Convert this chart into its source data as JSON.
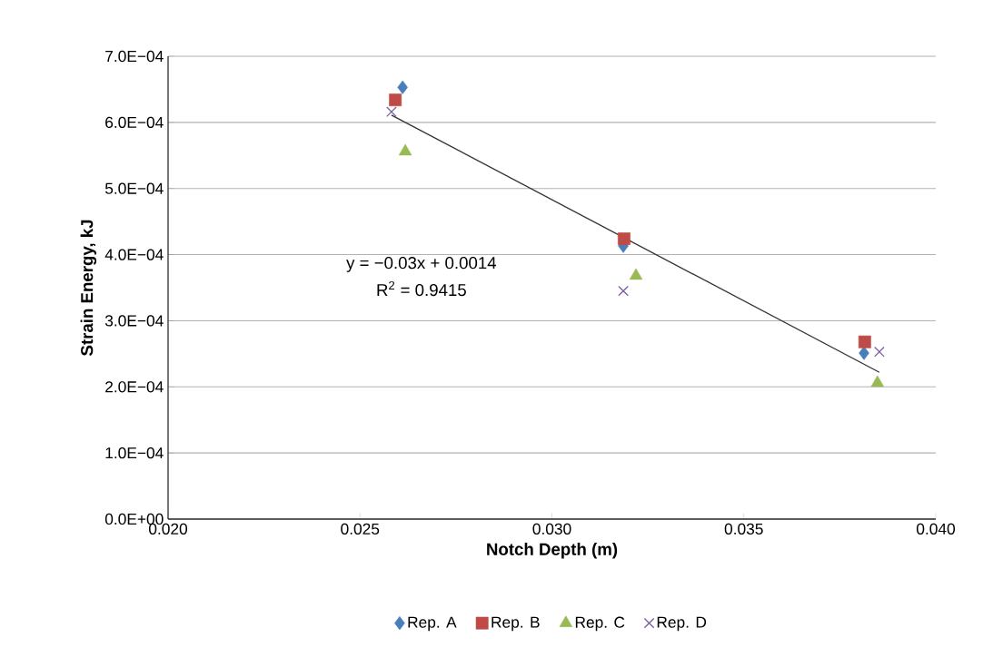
{
  "chart_data": {
    "type": "scatter",
    "xlabel": "Notch Depth (m)",
    "ylabel": "Strain Energy, kJ",
    "xlim": [
      0.02,
      0.04
    ],
    "ylim": [
      0,
      0.0007
    ],
    "xticks": [
      {
        "value": 0.02,
        "label": "0.020"
      },
      {
        "value": 0.025,
        "label": "0.025"
      },
      {
        "value": 0.03,
        "label": "0.030"
      },
      {
        "value": 0.035,
        "label": "0.035"
      },
      {
        "value": 0.04,
        "label": "0.040"
      }
    ],
    "yticks": [
      {
        "value": 0,
        "label": "0.0E+00"
      },
      {
        "value": 0.0001,
        "label": "1.0E−04"
      },
      {
        "value": 0.0002,
        "label": "2.0E−04"
      },
      {
        "value": 0.0003,
        "label": "3.0E−04"
      },
      {
        "value": 0.0004,
        "label": "4.0E−04"
      },
      {
        "value": 0.0005,
        "label": "5.0E−04"
      },
      {
        "value": 0.0006,
        "label": "6.0E−04"
      },
      {
        "value": 0.0007,
        "label": "7.0E−04"
      }
    ],
    "grid": "y",
    "legend": "bottom",
    "annotations": [
      "y = −0.03x + 0.0014",
      "R$^{2}$ = 0.9415"
    ],
    "series": [
      {
        "name": "Rep. A",
        "color": "#4a7ebb",
        "marker": "diamond",
        "x": [
          0.02611,
          0.03186,
          0.03813
        ],
        "values": [
          0.000653,
          0.000413,
          0.000251
        ]
      },
      {
        "name": "Rep. B",
        "color": "#be4b48",
        "marker": "square",
        "x": [
          0.02592,
          0.03188,
          0.03815
        ],
        "values": [
          0.000634,
          0.000424,
          0.000268
        ]
      },
      {
        "name": "Rep. C",
        "color": "#98b954",
        "marker": "triangle",
        "x": [
          0.02618,
          0.03219,
          0.03848
        ],
        "values": [
          0.000556,
          0.000368,
          0.000206
        ]
      },
      {
        "name": "Rep. D",
        "color": "#7d60a0",
        "marker": "cross",
        "x": [
          0.02582,
          0.03186,
          0.03853
        ],
        "values": [
          0.000616,
          0.000345,
          0.000253
        ]
      },
      {
        "type": "line",
        "color": "#333333",
        "marker": "none",
        "x": [
          0.02582,
          0.03853
        ],
        "values": [
          0.000611,
          0.000222
        ]
      }
    ]
  }
}
